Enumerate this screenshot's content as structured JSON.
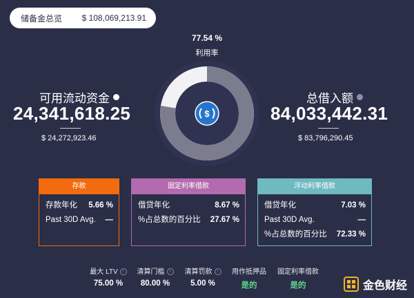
{
  "reserve_summary": {
    "label": "储备金总览",
    "value": "$ 108,069,213.91"
  },
  "utilization": {
    "percent": "77.54 %",
    "label": "利用率",
    "fraction": 0.7754
  },
  "available": {
    "title": "可用流动资金",
    "amount": "24,341,618.25",
    "usd": "$ 24,272,923.46",
    "dot_color": "#ffffff"
  },
  "borrowed": {
    "title": "总借入额",
    "amount": "84,033,442.31",
    "usd": "$ 83,796,290.45",
    "dot_color": "#8e90a2"
  },
  "token_icon": "usdc-icon",
  "cards": {
    "deposit": {
      "header": "存款",
      "color": "#f26b0f",
      "rows": [
        {
          "label": "存款年化",
          "value": "5.66 %"
        },
        {
          "label": "Past 30D Avg.",
          "value": "—"
        }
      ]
    },
    "stable": {
      "header": "固定利率借款",
      "color": "#b46aae",
      "rows": [
        {
          "label": "借贷年化",
          "value": "8.67 %"
        },
        {
          "label": "%占总数的百分比",
          "value": "27.67 %"
        }
      ]
    },
    "variable": {
      "header": "浮动利率借款",
      "color": "#6fb9c1",
      "rows": [
        {
          "label": "借贷年化",
          "value": "7.03 %"
        },
        {
          "label": "Past 30D Avg.",
          "value": "—"
        },
        {
          "label": "%占总数的百分比",
          "value": "72.33 %"
        }
      ]
    }
  },
  "stats": [
    {
      "label": "最大 LTV",
      "value": "75.00 %"
    },
    {
      "label": "清算门槛",
      "value": "80.00 %"
    },
    {
      "label": "清算罚款",
      "value": "5.00 %"
    },
    {
      "label": "用作抵押品",
      "value": "是的"
    },
    {
      "label": "固定利率借款",
      "value": "是的"
    }
  ],
  "watermark": {
    "text": "金色财经"
  },
  "colors": {
    "background": "#2b2e47",
    "donut_used": "#7b7d8f",
    "donut_free": "#f2f2f4",
    "yes_green": "#5fd38d"
  }
}
